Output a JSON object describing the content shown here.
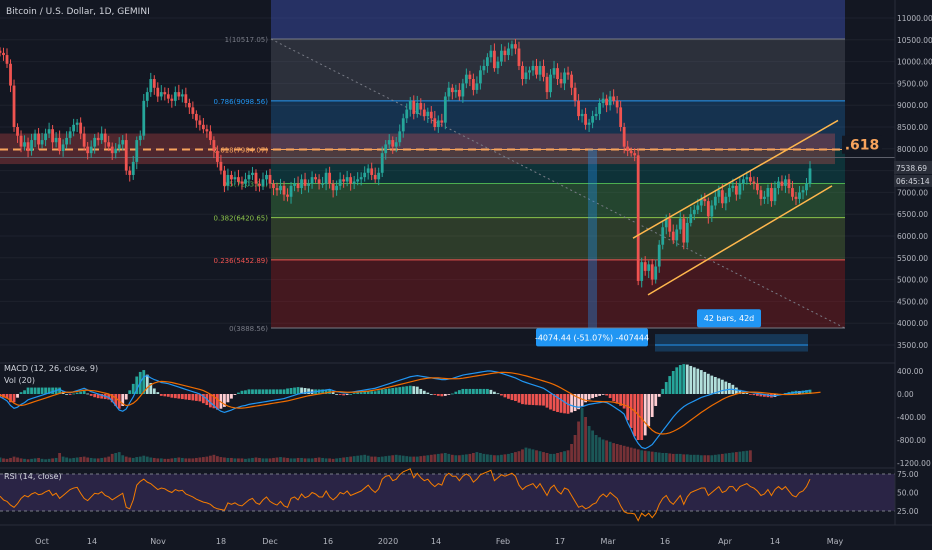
{
  "header": {
    "symbol_title": "Bitcoin / U.S. Dollar, 1D, GEMINI",
    "macd_label": "MACD (12, 26, close, 9)",
    "vol_label": "Vol (20)",
    "rsi_label": "RSI (14, close)"
  },
  "colors": {
    "background": "#131722",
    "up": "#26a69a",
    "down": "#ef5350",
    "fib_gold": "#f7a35c",
    "channel": "#ffb74d",
    "price_tag": "#2a2e39",
    "rsi_line": "#f57c00",
    "macd_line": "#2196f3",
    "signal_line": "#ef6c00",
    "measure": "#2196f3"
  },
  "badges": {
    "fib_618": ".618",
    "price": "7538.69",
    "countdown": "06:45:14",
    "measure_price": "-4074.44 (-51.07%) -407444",
    "measure_bars": "42 bars, 42d"
  },
  "chart_data": [
    {
      "type": "candlestick",
      "pane": "price",
      "ylim": [
        3500,
        11000
      ],
      "y_ticks": [
        "11000.00",
        "10500.00",
        "10000.00",
        "9500.00",
        "9000.00",
        "8500.00",
        "8000.00",
        "7500.00",
        "7000.00",
        "6500.00",
        "6000.00",
        "5500.00",
        "5000.00",
        "4500.00",
        "4000.00",
        "3500.00"
      ],
      "x_ticks": [
        "Oct",
        "14",
        "Nov",
        "18",
        "Dec",
        "16",
        "2020",
        "14",
        "Feb",
        "17",
        "Mar",
        "16",
        "Apr",
        "14",
        "May"
      ],
      "fib_levels": [
        {
          "ratio": "1",
          "price": "10517.05",
          "label": "1(10517.05)"
        },
        {
          "ratio": "0.786",
          "price": "9098.56",
          "label": "0.786(9098.56)"
        },
        {
          "ratio": "0.618",
          "price": "7984.07",
          "label": "0.618(7984.07)"
        },
        {
          "ratio": "0.5",
          "price": "7203.81",
          "label": "0.5(7203.81)"
        },
        {
          "ratio": "0.382",
          "price": "6420.65",
          "label": "0.382(6420.65)"
        },
        {
          "ratio": "0.236",
          "price": "5452.89",
          "label": "0.236(5452.89)"
        },
        {
          "ratio": "0",
          "price": "3888.56",
          "label": "0(3888.56)"
        }
      ],
      "closes": [
        10200,
        10150,
        9950,
        9450,
        8500,
        8300,
        8050,
        8150,
        7950,
        8200,
        8350,
        8100,
        8200,
        8350,
        8450,
        8150,
        8250,
        7950,
        8100,
        8250,
        8400,
        8550,
        8600,
        8350,
        8050,
        7900,
        8050,
        8250,
        8200,
        8350,
        8150,
        8050,
        7900,
        8000,
        8100,
        8200,
        7500,
        7400,
        7700,
        8200,
        8300,
        9100,
        9300,
        9600,
        9400,
        9200,
        9300,
        9250,
        9150,
        9100,
        9300,
        9200,
        9250,
        9050,
        8950,
        8800,
        8650,
        8550,
        8450,
        8400,
        8200,
        7950,
        7700,
        7500,
        7150,
        7400,
        7300,
        7350,
        7250,
        7200,
        7300,
        7400,
        7450,
        7200,
        7150,
        7300,
        7400,
        7200,
        7100,
        7050,
        7150,
        6950,
        6900,
        7150,
        7200,
        7100,
        7300,
        7150,
        7200,
        7350,
        7300,
        7200,
        7200,
        7450,
        7200,
        7050,
        7150,
        7300,
        7250,
        7350,
        7200,
        7250,
        7300,
        7350,
        7450,
        7550,
        7400,
        7300,
        7450,
        7900,
        8100,
        8200,
        8050,
        8150,
        8400,
        8700,
        8900,
        9100,
        8800,
        9050,
        8900,
        8750,
        8850,
        8700,
        8500,
        8650,
        8600,
        9200,
        9400,
        9300,
        9350,
        9200,
        9500,
        9700,
        9600,
        9350,
        9500,
        9800,
        9900,
        10100,
        10250,
        9850,
        10000,
        10250,
        10150,
        10300,
        10400,
        10300,
        9900,
        9600,
        9750,
        9800,
        9900,
        9700,
        9900,
        9650,
        9300,
        9700,
        9850,
        9600,
        9500,
        9750,
        9700,
        9400,
        9100,
        8750,
        8800,
        8550,
        8600,
        8750,
        8800,
        9050,
        9150,
        9000,
        9200,
        9100,
        8950,
        8500,
        8050,
        7950,
        7900,
        7850,
        4970,
        5400,
        5200,
        5350,
        5000,
        5300,
        5800,
        6200,
        6400,
        6100,
        5900,
        6150,
        6400,
        5850,
        6300,
        6500,
        6600,
        6700,
        6850,
        6800,
        6450,
        6700,
        6900,
        7050,
        6750,
        6900,
        7100,
        7150,
        6950,
        7200,
        7300,
        7350,
        7250,
        7200,
        7050,
        6850,
        6900,
        7100,
        6800,
        7100,
        7250,
        7150,
        7300,
        7100,
        6900,
        6850,
        7000,
        7050,
        7200,
        7550
      ],
      "macd": [
        -50,
        -80,
        -120,
        -200,
        -250,
        -230,
        -180,
        -150,
        -100,
        -80,
        -60,
        -40,
        -20,
        0,
        20,
        40,
        60,
        80,
        50,
        30,
        20,
        40,
        60,
        80,
        100,
        70,
        40,
        20,
        0,
        -20,
        -40,
        -60,
        -120,
        -200,
        -280,
        -300,
        -260,
        -150,
        -50,
        80,
        200,
        300,
        320,
        280,
        250,
        230,
        200,
        190,
        180,
        160,
        140,
        120,
        100,
        80,
        60,
        40,
        20,
        0,
        -40,
        -90,
        -150,
        -200,
        -260,
        -300,
        -320,
        -300,
        -280,
        -250,
        -230,
        -210,
        -200,
        -180,
        -170,
        -160,
        -150,
        -140,
        -130,
        -120,
        -110,
        -100,
        -90,
        -80,
        -60,
        -40,
        -20,
        0,
        10,
        20,
        30,
        30,
        40,
        50,
        60,
        70,
        80,
        60,
        40,
        30,
        20,
        20,
        30,
        40,
        50,
        60,
        70,
        80,
        90,
        100,
        120,
        140,
        160,
        180,
        200,
        220,
        240,
        260,
        280,
        300,
        310,
        320,
        310,
        300,
        290,
        280,
        270,
        260,
        250,
        250,
        260,
        270,
        290,
        310,
        330,
        340,
        350,
        360,
        370,
        380,
        390,
        400,
        400,
        390,
        380,
        360,
        340,
        320,
        300,
        280,
        250,
        220,
        200,
        180,
        160,
        140,
        120,
        100,
        60,
        20,
        -20,
        -60,
        -100,
        -140,
        -180,
        -200,
        -220,
        -230,
        -220,
        -200,
        -180,
        -170,
        -160,
        -150,
        -140,
        -150,
        -180,
        -220,
        -260,
        -300,
        -350,
        -500,
        -620,
        -760,
        -860,
        -930,
        -950,
        -920,
        -880,
        -800,
        -720,
        -640,
        -560,
        -480,
        -400,
        -330,
        -270,
        -220,
        -180,
        -150,
        -120,
        -90,
        -60,
        -40,
        -20,
        0,
        20,
        40,
        60,
        70,
        80,
        80,
        70,
        60,
        50,
        40,
        30,
        20,
        10,
        0,
        -10,
        -20,
        -30,
        -30,
        -20,
        -10,
        0,
        10,
        20,
        30,
        30,
        40,
        50,
        60
      ],
      "signal": [
        -20,
        -40,
        -70,
        -110,
        -160,
        -190,
        -200,
        -190,
        -170,
        -150,
        -130,
        -110,
        -90,
        -70,
        -50,
        -30,
        -10,
        10,
        25,
        30,
        30,
        35,
        45,
        55,
        65,
        65,
        60,
        55,
        45,
        30,
        15,
        0,
        -30,
        -70,
        -120,
        -170,
        -200,
        -190,
        -160,
        -110,
        -40,
        40,
        110,
        160,
        190,
        210,
        220,
        215,
        210,
        200,
        185,
        170,
        155,
        140,
        125,
        110,
        95,
        80,
        60,
        30,
        -5,
        -45,
        -90,
        -140,
        -180,
        -210,
        -230,
        -240,
        -245,
        -245,
        -240,
        -230,
        -220,
        -210,
        -200,
        -190,
        -180,
        -170,
        -160,
        -150,
        -140,
        -130,
        -120,
        -105,
        -90,
        -75,
        -60,
        -45,
        -30,
        -20,
        -10,
        0,
        10,
        20,
        30,
        40,
        40,
        40,
        35,
        30,
        30,
        30,
        35,
        40,
        45,
        50,
        60,
        70,
        80,
        90,
        105,
        120,
        135,
        150,
        165,
        180,
        195,
        210,
        225,
        240,
        255,
        265,
        275,
        280,
        280,
        280,
        275,
        270,
        265,
        265,
        265,
        268,
        275,
        285,
        295,
        305,
        315,
        325,
        335,
        345,
        355,
        365,
        372,
        376,
        376,
        372,
        366,
        356,
        344,
        330,
        315,
        298,
        280,
        262,
        244,
        226,
        208,
        188,
        164,
        136,
        104,
        70,
        35,
        0,
        -35,
        -65,
        -90,
        -110,
        -120,
        -125,
        -128,
        -130,
        -132,
        -134,
        -136,
        -142,
        -155,
        -172,
        -192,
        -215,
        -250,
        -300,
        -360,
        -430,
        -500,
        -570,
        -630,
        -670,
        -690,
        -695,
        -690,
        -675,
        -650,
        -620,
        -585,
        -545,
        -500,
        -455,
        -410,
        -365,
        -320,
        -280,
        -240,
        -200,
        -165,
        -130,
        -95,
        -65,
        -40,
        -20,
        0,
        15,
        25,
        30,
        32,
        32,
        30,
        26,
        20,
        14,
        8,
        2,
        -4,
        -8,
        -10,
        -10,
        -8,
        -5,
        -1,
        3,
        8,
        13,
        18,
        24,
        30
      ],
      "volume": [
        10,
        8,
        7,
        9,
        12,
        10,
        8,
        7,
        6,
        7,
        8,
        9,
        7,
        6,
        7,
        8,
        9,
        20,
        12,
        10,
        8,
        9,
        10,
        11,
        12,
        10,
        9,
        8,
        8,
        9,
        10,
        12,
        18,
        20,
        22,
        15,
        12,
        10,
        9,
        11,
        12,
        14,
        12,
        10,
        9,
        8,
        8,
        7,
        7,
        8,
        9,
        10,
        9,
        8,
        8,
        8,
        9,
        10,
        11,
        12,
        14,
        16,
        13,
        11,
        10,
        9,
        9,
        8,
        8,
        8,
        7,
        8,
        9,
        10,
        9,
        8,
        8,
        8,
        9,
        10,
        11,
        10,
        9,
        8,
        8,
        9,
        9,
        8,
        8,
        8,
        9,
        10,
        9,
        8,
        8,
        7,
        8,
        9,
        10,
        11,
        12,
        13,
        14,
        15,
        16,
        14,
        12,
        12,
        11,
        12,
        13,
        14,
        15,
        16,
        15,
        14,
        13,
        12,
        12,
        12,
        13,
        14,
        15,
        16,
        17,
        18,
        19,
        20,
        18,
        16,
        15,
        15,
        16,
        17,
        18,
        20,
        22,
        20,
        18,
        17,
        16,
        15,
        15,
        16,
        17,
        18,
        20,
        22,
        24,
        28,
        32,
        30,
        28,
        26,
        24,
        22,
        20,
        18,
        18,
        20,
        22,
        24,
        26,
        40,
        60,
        90,
        120,
        100,
        80,
        70,
        60,
        55,
        50,
        48,
        45,
        42,
        40,
        38,
        36,
        34,
        32,
        30,
        28,
        26,
        25,
        24,
        23,
        22,
        21,
        20,
        20,
        19,
        18,
        18,
        18,
        17,
        17,
        16,
        16,
        16,
        15,
        15,
        15,
        15,
        16,
        17,
        18,
        19,
        20,
        21,
        22,
        23,
        24,
        25,
        26
      ],
      "rsi": [
        45,
        40,
        38,
        33,
        30,
        35,
        42,
        46,
        44,
        48,
        50,
        47,
        48,
        51,
        53,
        46,
        49,
        42,
        46,
        50,
        54,
        56,
        57,
        49,
        42,
        39,
        44,
        49,
        48,
        51,
        46,
        44,
        40,
        43,
        46,
        49,
        30,
        28,
        40,
        60,
        65,
        68,
        64,
        62,
        58,
        54,
        56,
        55,
        52,
        50,
        54,
        52,
        53,
        48,
        46,
        44,
        41,
        39,
        37,
        36,
        34,
        30,
        28,
        27,
        26,
        36,
        34,
        36,
        33,
        32,
        36,
        40,
        42,
        36,
        34,
        40,
        44,
        38,
        35,
        33,
        38,
        32,
        30,
        42,
        44,
        40,
        48,
        43,
        45,
        50,
        48,
        44,
        44,
        52,
        44,
        40,
        44,
        50,
        48,
        52,
        46,
        48,
        50,
        52,
        56,
        60,
        54,
        50,
        55,
        68,
        72,
        73,
        66,
        68,
        74,
        78,
        80,
        82,
        70,
        76,
        70,
        66,
        68,
        62,
        58,
        62,
        60,
        72,
        76,
        72,
        72,
        66,
        72,
        75,
        72,
        64,
        68,
        74,
        76,
        78,
        80,
        66,
        70,
        74,
        72,
        74,
        76,
        72,
        60,
        54,
        58,
        60,
        62,
        56,
        62,
        54,
        46,
        56,
        60,
        52,
        48,
        56,
        54,
        46,
        38,
        30,
        32,
        28,
        30,
        34,
        36,
        44,
        48,
        44,
        50,
        46,
        42,
        32,
        24,
        22,
        22,
        21,
        12,
        22,
        18,
        22,
        16,
        22,
        34,
        42,
        46,
        38,
        34,
        40,
        46,
        34,
        44,
        50,
        52,
        54,
        56,
        56,
        46,
        50,
        54,
        58,
        50,
        52,
        58,
        58,
        52,
        58,
        60,
        62,
        58,
        56,
        52,
        46,
        48,
        54,
        46,
        54,
        58,
        54,
        58,
        52,
        46,
        44,
        50,
        52,
        58,
        68
      ],
      "rsi_ticks": [
        "75.00",
        "50.00",
        "25.00"
      ],
      "macd_ticks": [
        "400.00",
        "0.00",
        "-400.00",
        "-800.00",
        "-1200.00"
      ]
    }
  ]
}
